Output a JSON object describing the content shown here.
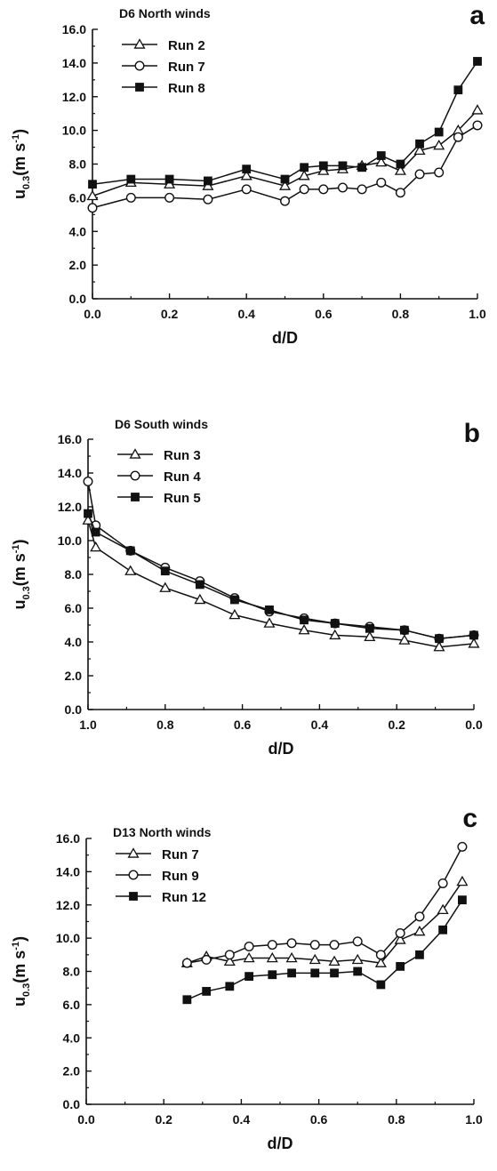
{
  "chart_data": [
    {
      "type": "line",
      "panel_letter": "a",
      "title": "D6 North winds",
      "xlabel": "d/D",
      "ylabel": "u",
      "ylabel_sub": "0.3",
      "ylabel_units": "(m s",
      "ylabel_exp": "-1",
      "ylabel_close": ")",
      "xlim": [
        0,
        1
      ],
      "ylim": [
        0,
        16
      ],
      "x_reversed": false,
      "xticks": [
        "0.0",
        "0.2",
        "0.4",
        "0.6",
        "0.8",
        "1.0"
      ],
      "yticks": [
        "0.0",
        "2.0",
        "4.0",
        "6.0",
        "8.0",
        "10.0",
        "12.0",
        "14.0",
        "16.0"
      ],
      "legend_position": "top-left",
      "series": [
        {
          "name": "Run 2",
          "marker": "triangle-open",
          "x": [
            0,
            0.1,
            0.2,
            0.3,
            0.4,
            0.5,
            0.55,
            0.6,
            0.65,
            0.7,
            0.75,
            0.8,
            0.85,
            0.9,
            0.95,
            1.0
          ],
          "values": [
            6.1,
            6.9,
            6.8,
            6.7,
            7.3,
            6.7,
            7.3,
            7.6,
            7.7,
            7.9,
            8.1,
            7.6,
            8.8,
            9.1,
            10.0,
            11.2
          ]
        },
        {
          "name": "Run 7",
          "marker": "circle-open",
          "x": [
            0,
            0.1,
            0.2,
            0.3,
            0.4,
            0.5,
            0.55,
            0.6,
            0.65,
            0.7,
            0.75,
            0.8,
            0.85,
            0.9,
            0.95,
            1.0
          ],
          "values": [
            5.4,
            6.0,
            6.0,
            5.9,
            6.5,
            5.8,
            6.5,
            6.5,
            6.6,
            6.5,
            6.9,
            6.3,
            7.4,
            7.5,
            9.6,
            10.3
          ]
        },
        {
          "name": "Run 8",
          "marker": "square-filled",
          "x": [
            0,
            0.1,
            0.2,
            0.3,
            0.4,
            0.5,
            0.55,
            0.6,
            0.65,
            0.7,
            0.75,
            0.8,
            0.85,
            0.9,
            0.95,
            1.0
          ],
          "values": [
            6.8,
            7.1,
            7.1,
            7.0,
            7.7,
            7.1,
            7.8,
            7.9,
            7.9,
            7.8,
            8.5,
            8.0,
            9.2,
            9.9,
            12.4,
            14.1
          ]
        }
      ]
    },
    {
      "type": "line",
      "panel_letter": "b",
      "title": "D6 South winds",
      "xlabel": "d/D",
      "ylabel": "u",
      "ylabel_sub": "0.3",
      "ylabel_units": "(m s",
      "ylabel_exp": "-1",
      "ylabel_close": ")",
      "xlim": [
        1,
        0
      ],
      "ylim": [
        0,
        16
      ],
      "x_reversed": true,
      "xticks": [
        "1.0",
        "0.8",
        "0.6",
        "0.4",
        "0.2",
        "0.0"
      ],
      "yticks": [
        "0.0",
        "2.0",
        "4.0",
        "6.0",
        "8.0",
        "10.0",
        "12.0",
        "14.0",
        "16.0"
      ],
      "legend_position": "top-left",
      "series": [
        {
          "name": "Run 3",
          "marker": "triangle-open",
          "x": [
            1.0,
            0.98,
            0.89,
            0.8,
            0.71,
            0.62,
            0.53,
            0.44,
            0.36,
            0.27,
            0.18,
            0.09,
            0.0
          ],
          "values": [
            11.2,
            9.6,
            8.2,
            7.2,
            6.5,
            5.6,
            5.1,
            4.7,
            4.4,
            4.3,
            4.1,
            3.7,
            3.9
          ]
        },
        {
          "name": "Run 4",
          "marker": "circle-open",
          "x": [
            1.0,
            0.98,
            0.89,
            0.8,
            0.71,
            0.62,
            0.53,
            0.44,
            0.36,
            0.27,
            0.18,
            0.09,
            0.0
          ],
          "values": [
            13.5,
            10.9,
            9.4,
            8.4,
            7.6,
            6.6,
            5.8,
            5.4,
            5.1,
            4.9,
            4.7,
            4.2,
            4.4
          ]
        },
        {
          "name": "Run 5",
          "marker": "square-filled",
          "x": [
            1.0,
            0.98,
            0.89,
            0.8,
            0.71,
            0.62,
            0.53,
            0.44,
            0.36,
            0.27,
            0.18,
            0.09,
            0.0
          ],
          "values": [
            11.6,
            10.5,
            9.4,
            8.2,
            7.4,
            6.5,
            5.9,
            5.3,
            5.1,
            4.8,
            4.7,
            4.2,
            4.4
          ]
        }
      ]
    },
    {
      "type": "line",
      "panel_letter": "c",
      "title": "D13 North winds",
      "xlabel": "d/D",
      "ylabel": "u",
      "ylabel_sub": "0.3",
      "ylabel_units": "(m s",
      "ylabel_exp": "-1",
      "ylabel_close": ")",
      "xlim": [
        0,
        1
      ],
      "ylim": [
        0,
        16
      ],
      "x_reversed": false,
      "xticks": [
        "0.0",
        "0.2",
        "0.4",
        "0.6",
        "0.8",
        "1.0"
      ],
      "yticks": [
        "0.0",
        "2.0",
        "4.0",
        "6.0",
        "8.0",
        "10.0",
        "12.0",
        "14.0",
        "16.0"
      ],
      "legend_position": "top-left",
      "series": [
        {
          "name": "Run 7",
          "marker": "triangle-open",
          "x": [
            0.26,
            0.31,
            0.37,
            0.42,
            0.48,
            0.53,
            0.59,
            0.64,
            0.7,
            0.76,
            0.81,
            0.86,
            0.92,
            0.97
          ],
          "values": [
            8.5,
            8.9,
            8.6,
            8.8,
            8.8,
            8.8,
            8.7,
            8.6,
            8.7,
            8.5,
            9.9,
            10.4,
            11.7,
            13.4
          ]
        },
        {
          "name": "Run 9",
          "marker": "circle-open",
          "x": [
            0.26,
            0.31,
            0.37,
            0.42,
            0.48,
            0.53,
            0.59,
            0.64,
            0.7,
            0.76,
            0.81,
            0.86,
            0.92,
            0.97
          ],
          "values": [
            8.5,
            8.7,
            9.0,
            9.5,
            9.6,
            9.7,
            9.6,
            9.6,
            9.8,
            9.0,
            10.3,
            11.3,
            13.3,
            15.5
          ]
        },
        {
          "name": "Run 12",
          "marker": "square-filled",
          "x": [
            0.26,
            0.31,
            0.37,
            0.42,
            0.48,
            0.53,
            0.59,
            0.64,
            0.7,
            0.76,
            0.81,
            0.86,
            0.92,
            0.97
          ],
          "values": [
            6.3,
            6.8,
            7.1,
            7.7,
            7.8,
            7.9,
            7.9,
            7.9,
            8.0,
            7.2,
            8.3,
            9.0,
            10.5,
            12.3
          ]
        }
      ]
    }
  ]
}
